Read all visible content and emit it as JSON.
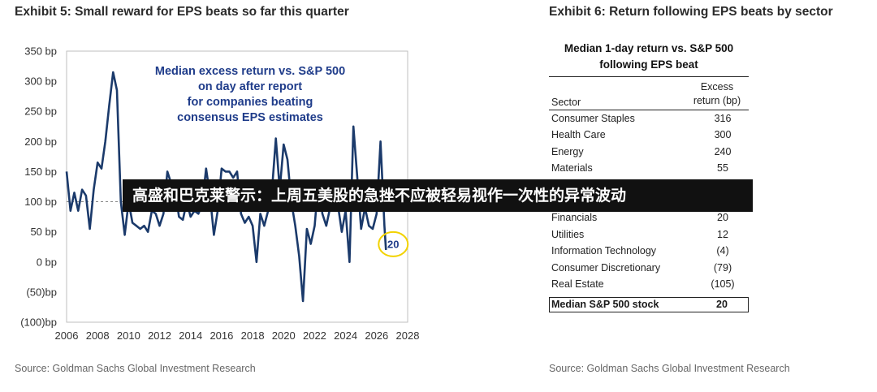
{
  "exhibit5": {
    "title": "Exhibit 5: Small reward for EPS beats so far this quarter",
    "source": "Source: Goldman Sachs Global Investment Research"
  },
  "exhibit6": {
    "title": "Exhibit 6: Return following EPS beats by sector",
    "source": "Source: Goldman Sachs Global Investment Research",
    "table": {
      "title_line1": "Median 1-day return vs. S&P 500",
      "title_line2": "following EPS beat",
      "col_sector": "Sector",
      "col_return_line1": "Excess",
      "col_return_line2": "return (bp)",
      "rows": [
        {
          "sector": "Consumer Staples",
          "value": "316"
        },
        {
          "sector": "Health Care",
          "value": "300"
        },
        {
          "sector": "Energy",
          "value": "240"
        },
        {
          "sector": "Materials",
          "value": "55"
        },
        {
          "sector": "",
          "value": ""
        },
        {
          "sector": "",
          "value": ""
        },
        {
          "sector": "Financials",
          "value": "20"
        },
        {
          "sector": "Utilities",
          "value": "12"
        },
        {
          "sector": "Information Technology",
          "value": "(4)"
        },
        {
          "sector": "Consumer Discretionary",
          "value": "(79)"
        },
        {
          "sector": "Real Estate",
          "value": "(105)"
        }
      ],
      "total_label": "Median S&P 500 stock",
      "total_value": "20"
    }
  },
  "banner": {
    "text": "高盛和巴克莱警示：上周五美股的急挫不应被轻易视作一次性的异常波动",
    "background": "#111111"
  },
  "chart_data": {
    "type": "line",
    "title": "",
    "annotation": [
      "Median excess return vs. S&P 500",
      "on day after report",
      "for companies beating",
      "consensus EPS estimates"
    ],
    "xlabel": "",
    "ylabel": "",
    "xlim": [
      2006,
      2028
    ],
    "ylim": [
      -100,
      350
    ],
    "xticks": [
      2006,
      2008,
      2010,
      2012,
      2014,
      2016,
      2018,
      2020,
      2022,
      2024,
      2026,
      2028
    ],
    "yticks": [
      350,
      300,
      250,
      200,
      150,
      100,
      50,
      0,
      -50,
      -100
    ],
    "ytick_labels": [
      "350 bp",
      "300 bp",
      "250 bp",
      "200 bp",
      "150 bp",
      "100 bp",
      "50 bp",
      "0 bp",
      "(50)bp",
      "(100)bp"
    ],
    "reference_line": 100,
    "grid": false,
    "line_color": "#1b3a6b",
    "callout": {
      "value": "20",
      "x": 2026.6,
      "y": 20,
      "color": "#f2d200"
    },
    "series": [
      {
        "values": [
          [
            2006.0,
            150
          ],
          [
            2006.25,
            85
          ],
          [
            2006.5,
            115
          ],
          [
            2006.75,
            85
          ],
          [
            2007.0,
            120
          ],
          [
            2007.25,
            110
          ],
          [
            2007.5,
            55
          ],
          [
            2007.75,
            120
          ],
          [
            2008.0,
            165
          ],
          [
            2008.25,
            155
          ],
          [
            2008.5,
            200
          ],
          [
            2008.75,
            260
          ],
          [
            2009.0,
            315
          ],
          [
            2009.25,
            285
          ],
          [
            2009.5,
            100
          ],
          [
            2009.75,
            45
          ],
          [
            2010.0,
            100
          ],
          [
            2010.25,
            65
          ],
          [
            2010.5,
            60
          ],
          [
            2010.75,
            55
          ],
          [
            2011.0,
            60
          ],
          [
            2011.25,
            50
          ],
          [
            2011.5,
            85
          ],
          [
            2011.75,
            80
          ],
          [
            2012.0,
            60
          ],
          [
            2012.25,
            80
          ],
          [
            2012.5,
            150
          ],
          [
            2012.75,
            130
          ],
          [
            2013.0,
            120
          ],
          [
            2013.25,
            75
          ],
          [
            2013.5,
            70
          ],
          [
            2013.75,
            100
          ],
          [
            2014.0,
            75
          ],
          [
            2014.25,
            85
          ],
          [
            2014.5,
            80
          ],
          [
            2014.75,
            95
          ],
          [
            2015.0,
            155
          ],
          [
            2015.25,
            110
          ],
          [
            2015.5,
            45
          ],
          [
            2015.75,
            85
          ],
          [
            2016.0,
            155
          ],
          [
            2016.25,
            150
          ],
          [
            2016.5,
            150
          ],
          [
            2016.75,
            140
          ],
          [
            2017.0,
            150
          ],
          [
            2017.25,
            80
          ],
          [
            2017.5,
            65
          ],
          [
            2017.75,
            75
          ],
          [
            2018.0,
            60
          ],
          [
            2018.25,
            0
          ],
          [
            2018.5,
            80
          ],
          [
            2018.75,
            60
          ],
          [
            2019.0,
            85
          ],
          [
            2019.25,
            120
          ],
          [
            2019.5,
            205
          ],
          [
            2019.75,
            120
          ],
          [
            2020.0,
            195
          ],
          [
            2020.25,
            170
          ],
          [
            2020.5,
            100
          ],
          [
            2020.75,
            60
          ],
          [
            2021.0,
            10
          ],
          [
            2021.25,
            -65
          ],
          [
            2021.5,
            55
          ],
          [
            2021.75,
            30
          ],
          [
            2022.0,
            60
          ],
          [
            2022.25,
            135
          ],
          [
            2022.5,
            80
          ],
          [
            2022.75,
            60
          ],
          [
            2023.0,
            90
          ],
          [
            2023.25,
            90
          ],
          [
            2023.5,
            95
          ],
          [
            2023.75,
            50
          ],
          [
            2024.0,
            85
          ],
          [
            2024.25,
            0
          ],
          [
            2024.5,
            225
          ],
          [
            2024.75,
            140
          ],
          [
            2025.0,
            55
          ],
          [
            2025.25,
            90
          ],
          [
            2025.5,
            60
          ],
          [
            2025.75,
            55
          ],
          [
            2026.0,
            80
          ],
          [
            2026.25,
            200
          ],
          [
            2026.5,
            60
          ],
          [
            2026.6,
            20
          ]
        ]
      }
    ]
  }
}
